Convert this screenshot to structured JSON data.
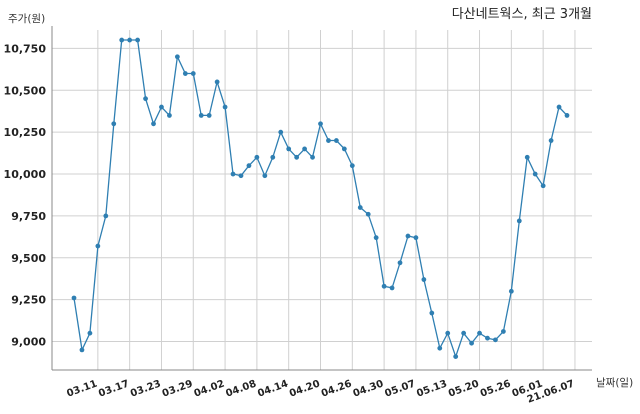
{
  "chart_data": {
    "type": "line",
    "title": "다산네트웍스, 최근 3개월",
    "ylabel": "주가(원)",
    "xlabel": "날짜(일)",
    "ylim": [
      8830,
      10860
    ],
    "yticks": [
      9000,
      9250,
      9500,
      9750,
      10000,
      10250,
      10500,
      10750
    ],
    "ytick_labels": [
      "9,000",
      "9,250",
      "9,500",
      "9,750",
      "10,000",
      "10,250",
      "10,500",
      "10,750"
    ],
    "xtick_labels": [
      "03.11",
      "03.17",
      "03.23",
      "03.29",
      "04.02",
      "04.08",
      "04.14",
      "04.20",
      "04.26",
      "04.30",
      "05.07",
      "05.13",
      "05.20",
      "05.26",
      "06.01",
      "21.06.07"
    ],
    "xtick_index": [
      3,
      7,
      11,
      15,
      19,
      23,
      27,
      31,
      35,
      39,
      43,
      47,
      51,
      55,
      59,
      63
    ],
    "grid": true,
    "series": [
      {
        "color": "#2f7fb2",
        "values": [
          9260,
          8950,
          9050,
          9570,
          9750,
          10300,
          10800,
          10800,
          10800,
          10450,
          10300,
          10400,
          10350,
          10700,
          10600,
          10600,
          10350,
          10350,
          10550,
          10400,
          10000,
          9990,
          10050,
          10100,
          9990,
          10100,
          10250,
          10150,
          10100,
          10150,
          10100,
          10300,
          10200,
          10200,
          10150,
          10050,
          9800,
          9760,
          9620,
          9330,
          9320,
          9470,
          9630,
          9620,
          9370,
          9170,
          8960,
          9050,
          8910,
          9050,
          8990,
          9050,
          9020,
          9010,
          9060,
          9300,
          9720,
          10100,
          10000,
          9930,
          10200,
          10400,
          10350
        ]
      }
    ]
  }
}
